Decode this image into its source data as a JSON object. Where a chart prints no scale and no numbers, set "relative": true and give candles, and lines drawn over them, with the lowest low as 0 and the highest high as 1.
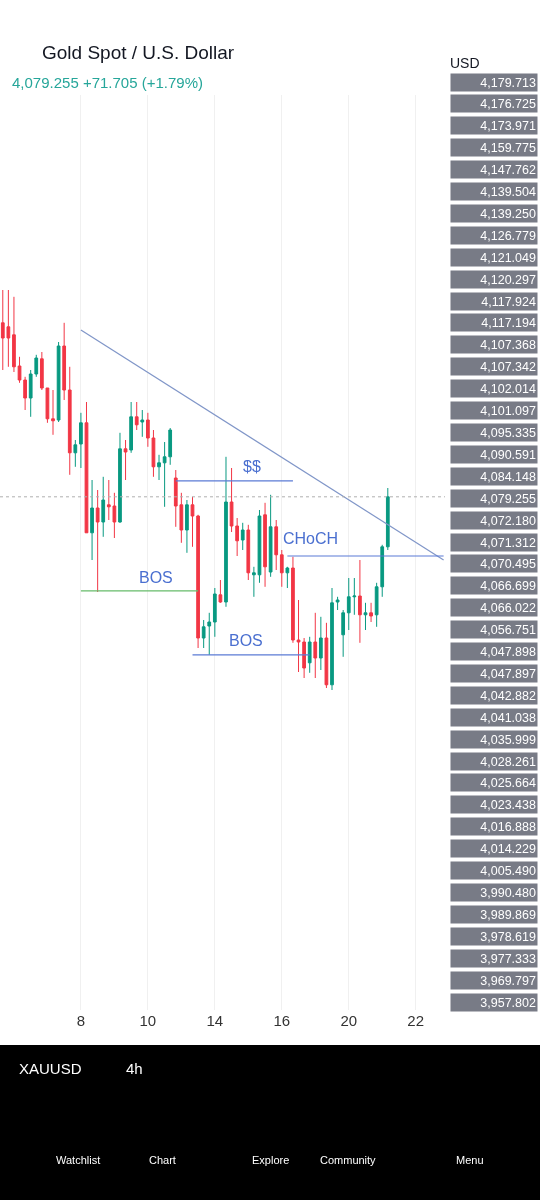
{
  "chart_data": {
    "type": "candlestick",
    "title": "Gold Spot / U.S. Dollar",
    "subtitle": "4,079.255 +71.705 (+1.79%)",
    "relative": true,
    "categories": [
      null,
      null,
      null,
      null,
      null,
      null,
      null,
      null,
      null,
      null,
      null,
      null,
      null,
      null,
      "8",
      null,
      null,
      null,
      null,
      null,
      null,
      null,
      null,
      null,
      null,
      null,
      "10",
      null,
      null,
      null,
      null,
      null,
      null,
      null,
      null,
      null,
      null,
      null,
      "14",
      null,
      null,
      null,
      null,
      null,
      null,
      null,
      null,
      null,
      null,
      null,
      "16",
      null,
      null,
      null,
      null,
      null,
      null,
      null,
      null,
      null,
      null,
      null,
      "20",
      null,
      null,
      null,
      null,
      null,
      null,
      null,
      null,
      null,
      null,
      null,
      "22",
      null,
      null,
      null,
      null,
      null
    ],
    "tick_labels": "x",
    "grid": "x",
    "series": [
      {
        "ohlc": [
          [
            0.918,
            1.0,
            0.8,
            0.88
          ],
          [
            0.908,
            1.0,
            0.808,
            0.88
          ],
          [
            0.888,
            0.983,
            0.795,
            0.808
          ],
          [
            0.81,
            0.833,
            0.768,
            0.775
          ],
          [
            0.775,
            0.783,
            0.7,
            0.73
          ],
          [
            0.73,
            0.8,
            0.683,
            0.79
          ],
          [
            0.79,
            0.838,
            0.783,
            0.83
          ],
          [
            0.828,
            0.845,
            0.75,
            0.755
          ],
          [
            0.755,
            0.755,
            0.668,
            0.678
          ],
          [
            0.678,
            0.75,
            0.638,
            0.673
          ],
          [
            0.675,
            0.87,
            0.67,
            0.86
          ],
          [
            0.86,
            0.918,
            0.725,
            0.75
          ],
          [
            0.75,
            0.808,
            0.538,
            0.593
          ],
          [
            0.593,
            0.625,
            0.558,
            0.613
          ],
          [
            0.615,
            0.693,
            0.555,
            0.668
          ],
          [
            0.668,
            0.72,
            0.393,
            0.393
          ],
          [
            0.393,
            0.525,
            0.325,
            0.455
          ],
          [
            0.455,
            0.5,
            0.245,
            0.42
          ],
          [
            0.42,
            0.533,
            0.383,
            0.475
          ],
          [
            0.463,
            0.525,
            0.425,
            0.458
          ],
          [
            0.46,
            0.493,
            0.38,
            0.42
          ],
          [
            0.42,
            0.643,
            0.418,
            0.603
          ],
          [
            0.603,
            0.625,
            0.525,
            0.595
          ],
          [
            0.6,
            0.72,
            0.593,
            0.683
          ],
          [
            0.683,
            0.72,
            0.65,
            0.663
          ],
          [
            0.67,
            0.7,
            0.633,
            0.675
          ],
          [
            0.675,
            0.693,
            0.608,
            0.63
          ],
          [
            0.63,
            0.65,
            0.533,
            0.558
          ],
          [
            0.558,
            0.588,
            0.525,
            0.568
          ],
          [
            0.568,
            0.62,
            0.458,
            0.583
          ],
          [
            0.583,
            0.655,
            0.563,
            0.65
          ],
          [
            0.53,
            0.55,
            0.408,
            0.46
          ],
          [
            0.463,
            0.493,
            0.368,
            0.4
          ],
          [
            0.4,
            0.475,
            0.343,
            0.463
          ],
          [
            0.463,
            0.483,
            0.358,
            0.435
          ],
          [
            0.435,
            0.438,
            0.105,
            0.13
          ],
          [
            0.13,
            0.175,
            0.105,
            0.158
          ],
          [
            0.16,
            0.193,
            0.088,
            0.17
          ],
          [
            0.17,
            0.255,
            0.133,
            0.24
          ],
          [
            0.238,
            0.275,
            0.218,
            0.22
          ],
          [
            0.22,
            0.583,
            0.208,
            0.47
          ],
          [
            0.47,
            0.555,
            0.395,
            0.41
          ],
          [
            0.41,
            0.43,
            0.335,
            0.373
          ],
          [
            0.375,
            0.418,
            0.35,
            0.4
          ],
          [
            0.4,
            0.413,
            0.275,
            0.293
          ],
          [
            0.288,
            0.308,
            0.233,
            0.293
          ],
          [
            0.288,
            0.45,
            0.268,
            0.435
          ],
          [
            0.438,
            0.468,
            0.258,
            0.308
          ],
          [
            0.295,
            0.488,
            0.283,
            0.408
          ],
          [
            0.408,
            0.425,
            0.3,
            0.338
          ],
          [
            0.338,
            0.35,
            0.258,
            0.293
          ],
          [
            0.293,
            0.308,
            0.255,
            0.305
          ],
          [
            0.305,
            0.333,
            0.118,
            0.125
          ],
          [
            0.125,
            0.225,
            0.045,
            0.12
          ],
          [
            0.12,
            0.13,
            0.03,
            0.055
          ],
          [
            0.068,
            0.133,
            0.043,
            0.12
          ],
          [
            0.12,
            0.193,
            0.03,
            0.08
          ],
          [
            0.08,
            0.183,
            0.05,
            0.13
          ],
          [
            0.13,
            0.168,
            0.005,
            0.013
          ],
          [
            0.013,
            0.255,
            0.0,
            0.218
          ],
          [
            0.22,
            0.233,
            0.2,
            0.225
          ],
          [
            0.138,
            0.2,
            0.083,
            0.193
          ],
          [
            0.193,
            0.28,
            0.15,
            0.233
          ],
          [
            0.233,
            0.28,
            0.188,
            0.235
          ],
          [
            0.235,
            0.325,
            0.118,
            0.188
          ],
          [
            0.188,
            0.218,
            0.15,
            0.193
          ],
          [
            0.193,
            0.218,
            0.17,
            0.185
          ],
          [
            0.188,
            0.268,
            0.158,
            0.258
          ],
          [
            0.258,
            0.363,
            0.233,
            0.358
          ],
          [
            0.358,
            0.505,
            0.35,
            0.483
          ],
          null,
          null,
          null,
          null,
          null,
          null,
          null,
          null,
          null,
          null
        ],
        "colors": [
          "#f23645",
          "#f23645",
          "#f23645",
          "#f23645",
          "#f23645",
          "#089981",
          "#089981",
          "#f23645",
          "#f23645",
          "#f23645",
          "#089981",
          "#f23645",
          "#f23645",
          "#089981",
          "#089981",
          "#f23645",
          "#089981",
          "#f23645",
          "#089981",
          "#f23645",
          "#f23645",
          "#089981",
          "#f23645",
          "#089981",
          "#f23645",
          "#089981",
          "#f23645",
          "#f23645",
          "#089981",
          "#089981",
          "#089981",
          "#f23645",
          "#f23645",
          "#089981",
          "#f23645",
          "#f23645",
          "#089981",
          "#089981",
          "#089981",
          "#f23645",
          "#089981",
          "#f23645",
          "#f23645",
          "#089981",
          "#f23645",
          "#089981",
          "#089981",
          "#f23645",
          "#089981",
          "#f23645",
          "#f23645",
          "#089981",
          "#f23645",
          "#f23645",
          "#f23645",
          "#089981",
          "#f23645",
          "#089981",
          "#f23645",
          "#089981",
          "#089981",
          "#089981",
          "#089981",
          "#089981",
          "#f23645",
          "#089981",
          "#f23645",
          "#089981",
          "#089981",
          "#089981",
          null,
          null,
          null,
          null,
          null,
          null,
          null,
          null,
          null,
          null
        ]
      },
      {
        "type": "line",
        "color": "#8096c8",
        "values": [
          null,
          null,
          null,
          null,
          null,
          null,
          null,
          null,
          null,
          null,
          null,
          null,
          null,
          null,
          0.9,
          null,
          null,
          null,
          null,
          null,
          null,
          null,
          null,
          null,
          null,
          null,
          null,
          null,
          null,
          null,
          null,
          null,
          null,
          null,
          null,
          null,
          null,
          null,
          null,
          null,
          null,
          null,
          null,
          null,
          null,
          null,
          null,
          null,
          null,
          null,
          null,
          null,
          null,
          null,
          null,
          null,
          null,
          null,
          null,
          null,
          null,
          null,
          null,
          null,
          null,
          null,
          null,
          null,
          null,
          null,
          null,
          null,
          null,
          null,
          null,
          null,
          null,
          null,
          null,
          0.325
        ]
      },
      {
        "type": "line",
        "color": "#66bb6a",
        "values": [
          null,
          null,
          null,
          null,
          null,
          null,
          null,
          null,
          null,
          null,
          null,
          null,
          null,
          null,
          0.248,
          null,
          null,
          null,
          null,
          null,
          null,
          null,
          null,
          null,
          null,
          null,
          null,
          null,
          null,
          null,
          null,
          null,
          null,
          null,
          null,
          0.248,
          null,
          null,
          null,
          null,
          null,
          null,
          null,
          null,
          null,
          null,
          null,
          null,
          null,
          null,
          null,
          null,
          null,
          null,
          null,
          null,
          null,
          null,
          null,
          null,
          null,
          null,
          null,
          null,
          null,
          null,
          null,
          null,
          null,
          null,
          null,
          null,
          null,
          null,
          null,
          null,
          null,
          null,
          null,
          null
        ]
      },
      {
        "type": "line",
        "color": "#5b7bd5",
        "values": [
          null,
          null,
          null,
          null,
          null,
          null,
          null,
          null,
          null,
          null,
          null,
          null,
          null,
          null,
          null,
          null,
          null,
          null,
          null,
          null,
          null,
          null,
          null,
          null,
          null,
          null,
          null,
          null,
          null,
          null,
          null,
          null,
          null,
          null,
          0.088,
          null,
          null,
          null,
          null,
          null,
          null,
          null,
          null,
          null,
          null,
          null,
          null,
          null,
          null,
          null,
          null,
          null,
          null,
          null,
          null,
          0.088,
          null,
          null,
          null,
          null,
          null,
          null,
          null,
          null,
          null,
          null,
          null,
          null,
          null,
          null,
          null,
          null,
          null,
          null,
          null,
          null,
          null,
          null,
          null,
          null
        ]
      },
      {
        "type": "line",
        "color": "#5b7bd5",
        "values": [
          null,
          null,
          null,
          null,
          null,
          null,
          null,
          null,
          null,
          null,
          null,
          null,
          null,
          null,
          null,
          null,
          null,
          null,
          null,
          null,
          null,
          null,
          null,
          null,
          null,
          null,
          null,
          null,
          null,
          null,
          null,
          0.523,
          null,
          null,
          null,
          null,
          null,
          null,
          null,
          null,
          null,
          null,
          null,
          null,
          null,
          null,
          null,
          null,
          null,
          null,
          null,
          null,
          0.523,
          null,
          null,
          null,
          null,
          null,
          null,
          null,
          null,
          null,
          null,
          null,
          null,
          null,
          null,
          null,
          null,
          null,
          null,
          null,
          null,
          null,
          null,
          null,
          null,
          null,
          null,
          null
        ]
      },
      {
        "type": "line",
        "color": "#5b7bd5",
        "values": [
          null,
          null,
          null,
          null,
          null,
          null,
          null,
          null,
          null,
          null,
          null,
          null,
          null,
          null,
          null,
          null,
          null,
          null,
          null,
          null,
          null,
          null,
          null,
          null,
          null,
          null,
          null,
          null,
          null,
          null,
          null,
          null,
          null,
          null,
          null,
          null,
          null,
          null,
          null,
          null,
          null,
          null,
          null,
          null,
          null,
          null,
          null,
          null,
          null,
          null,
          null,
          0.335,
          null,
          null,
          null,
          null,
          null,
          null,
          null,
          null,
          null,
          null,
          null,
          null,
          null,
          null,
          null,
          null,
          null,
          null,
          null,
          null,
          null,
          null,
          null,
          null,
          null,
          null,
          null,
          0.335
        ]
      }
    ],
    "ref_lines": [
      {
        "axis": "y",
        "value": 0.483,
        "color": "#b0b0b0",
        "line_style": "dotted"
      }
    ],
    "annotations": [
      "BOS",
      "BOS",
      "$$",
      "CHoCH",
      "USD",
      "4,179.713",
      "4,176.725",
      "4,173.971",
      "4,159.775",
      "4,147.762",
      "4,139.504",
      "4,139.250",
      "4,126.779",
      "4,121.049",
      "4,120.297",
      "4,117.924",
      "4,117.194",
      "4,107.368",
      "4,107.342",
      "4,102.014",
      "4,101.097",
      "4,095.335",
      "4,090.591",
      "4,084.148",
      "4,079.255",
      "4,072.180",
      "4,071.312",
      "4,070.495",
      "4,066.699",
      "4,066.022",
      "4,056.751",
      "4,047.898",
      "4,047.897",
      "4,042.882",
      "4,041.038",
      "4,035.999",
      "4,028.261",
      "4,025.664",
      "4,023.438",
      "4,016.888",
      "4,014.229",
      "4,005.490",
      "3,990.480",
      "3,989.869",
      "3,978.619",
      "3,977.333",
      "3,969.797",
      "3,957.802",
      "XAUUSD",
      "4h",
      "Watchlist",
      "Chart",
      "Explore",
      "Community",
      "Menu"
    ]
  }
}
